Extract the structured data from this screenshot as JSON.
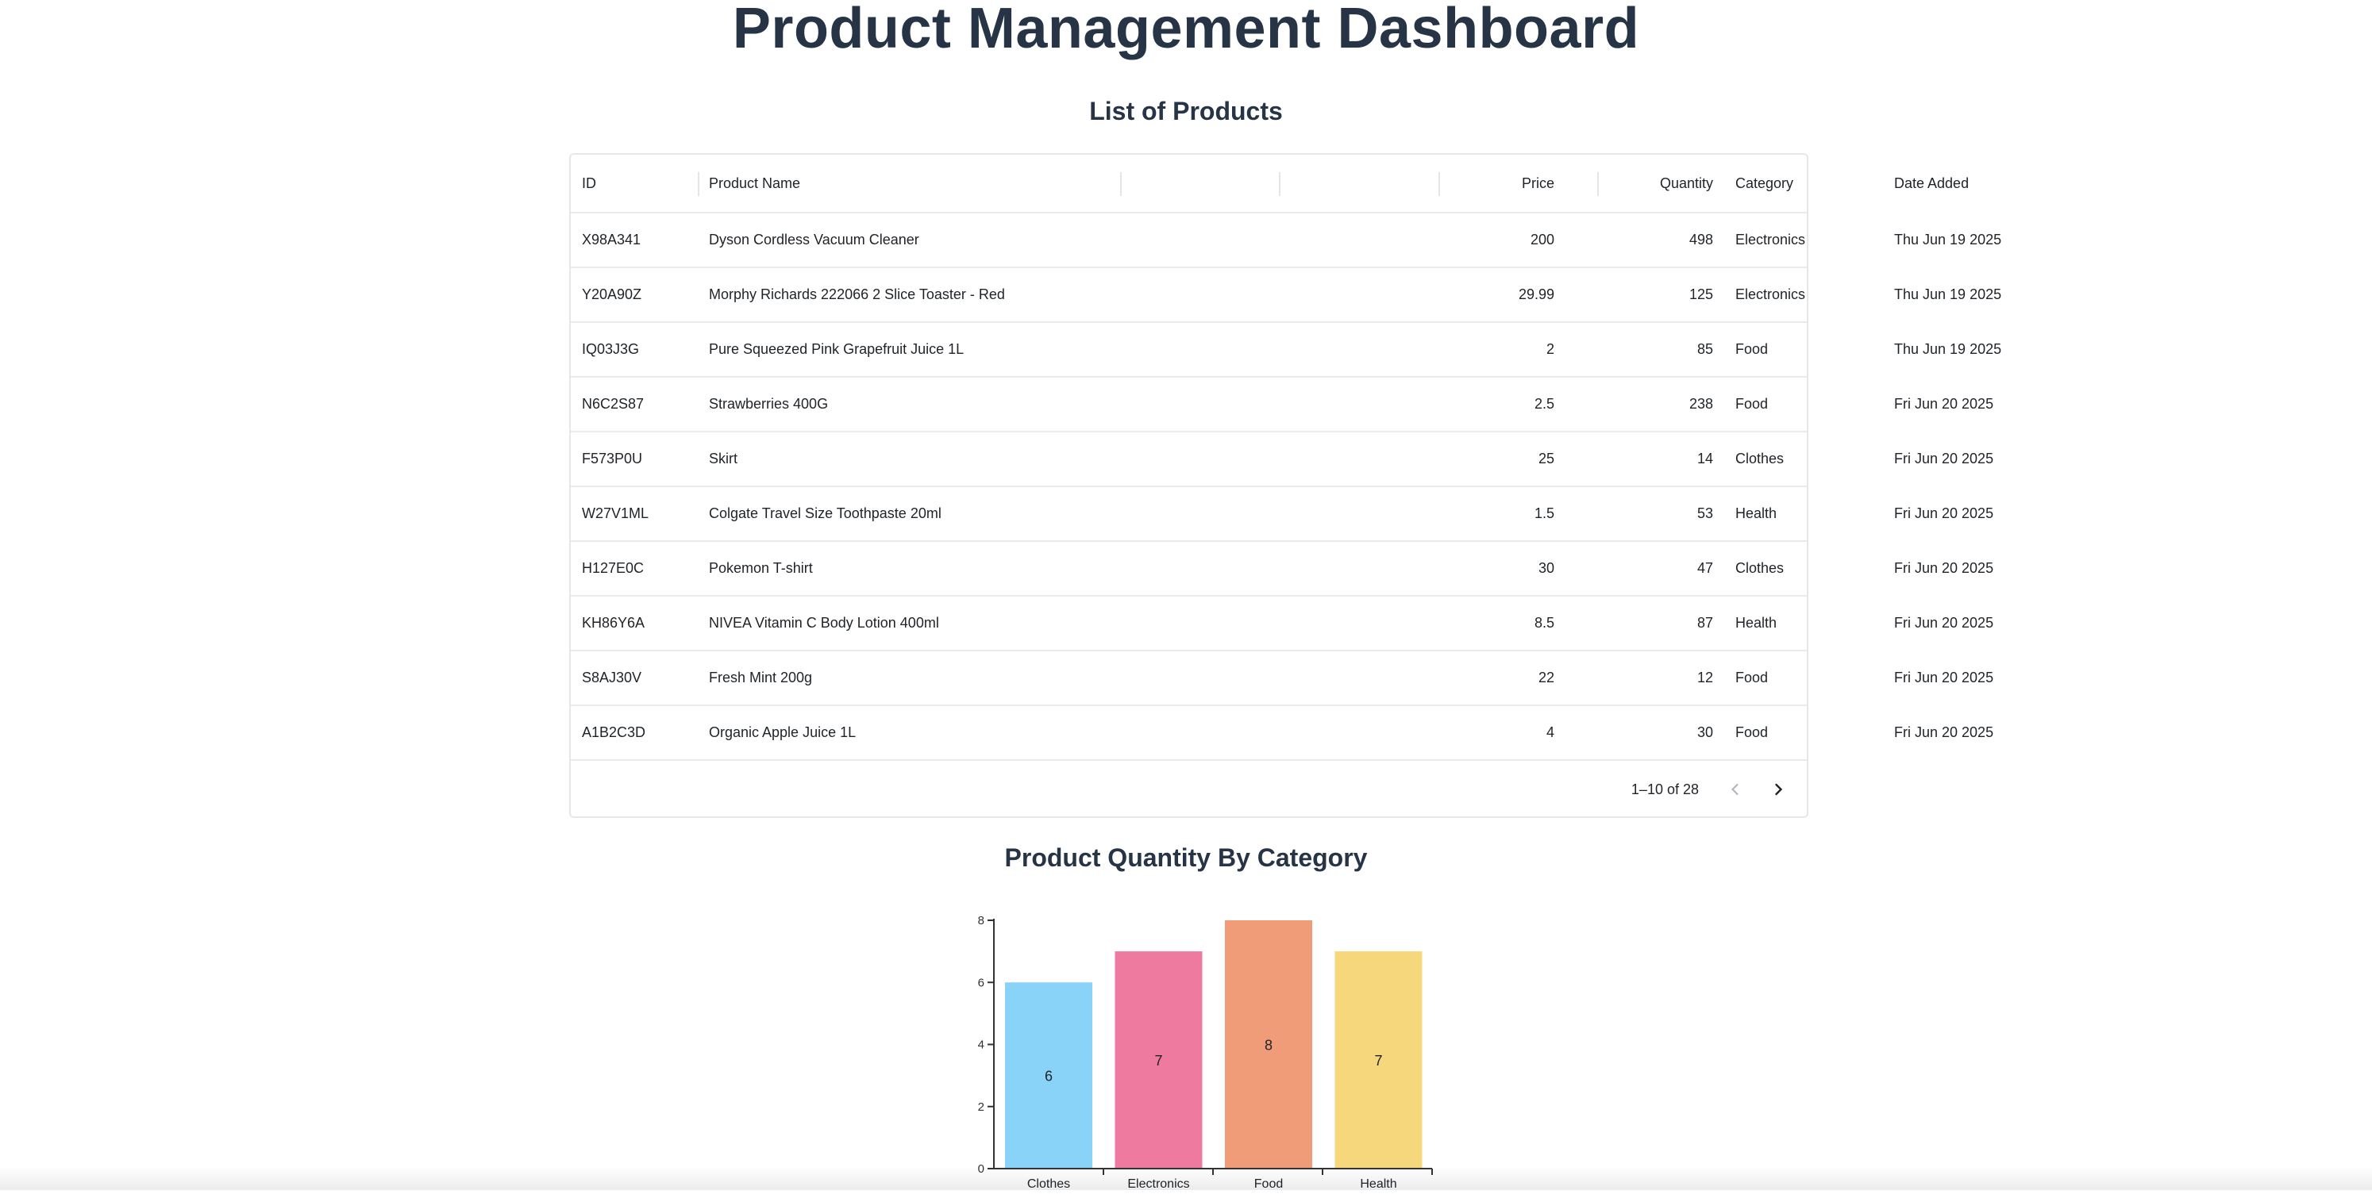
{
  "page": {
    "title": "Product Management Dashboard",
    "products_heading": "List of Products",
    "chart_heading": "Product Quantity By Category"
  },
  "table": {
    "columns": {
      "id": "ID",
      "name": "Product Name",
      "price": "Price",
      "quantity": "Quantity",
      "category": "Category",
      "date": "Date Added"
    },
    "rows": [
      {
        "id": "X98A341",
        "name": "Dyson Cordless Vacuum Cleaner",
        "price": "200",
        "quantity": "498",
        "category": "Electronics",
        "date": "Thu Jun 19 2025"
      },
      {
        "id": "Y20A90Z",
        "name": "Morphy Richards 222066 2 Slice Toaster - Red",
        "price": "29.99",
        "quantity": "125",
        "category": "Electronics",
        "date": "Thu Jun 19 2025"
      },
      {
        "id": "IQ03J3G",
        "name": "Pure Squeezed Pink Grapefruit Juice 1L",
        "price": "2",
        "quantity": "85",
        "category": "Food",
        "date": "Thu Jun 19 2025"
      },
      {
        "id": "N6C2S87",
        "name": "Strawberries 400G",
        "price": "2.5",
        "quantity": "238",
        "category": "Food",
        "date": "Fri Jun 20 2025"
      },
      {
        "id": "F573P0U",
        "name": "Skirt",
        "price": "25",
        "quantity": "14",
        "category": "Clothes",
        "date": "Fri Jun 20 2025"
      },
      {
        "id": "W27V1ML",
        "name": "Colgate Travel Size Toothpaste 20ml",
        "price": "1.5",
        "quantity": "53",
        "category": "Health",
        "date": "Fri Jun 20 2025"
      },
      {
        "id": "H127E0C",
        "name": "Pokemon T-shirt",
        "price": "30",
        "quantity": "47",
        "category": "Clothes",
        "date": "Fri Jun 20 2025"
      },
      {
        "id": "KH86Y6A",
        "name": "NIVEA Vitamin C Body Lotion 400ml",
        "price": "8.5",
        "quantity": "87",
        "category": "Health",
        "date": "Fri Jun 20 2025"
      },
      {
        "id": "S8AJ30V",
        "name": "Fresh Mint 200g",
        "price": "22",
        "quantity": "12",
        "category": "Food",
        "date": "Fri Jun 20 2025"
      },
      {
        "id": "A1B2C3D",
        "name": "Organic Apple Juice 1L",
        "price": "4",
        "quantity": "30",
        "category": "Food",
        "date": "Fri Jun 20 2025"
      }
    ],
    "pagination": {
      "range_text": "1–10 of 28",
      "prev_icon": "chevron-left-icon",
      "next_icon": "chevron-right-icon"
    }
  },
  "chart_data": {
    "type": "bar",
    "categories": [
      "Clothes",
      "Electronics",
      "Food",
      "Health"
    ],
    "values": [
      6,
      7,
      8,
      7
    ],
    "data_labels": [
      "6",
      "7",
      "8",
      "7"
    ],
    "colors": [
      "#8ad3f8",
      "#ef7aa0",
      "#f09c78",
      "#f6d77c"
    ],
    "yticks": [
      "0",
      "2",
      "4",
      "6",
      "8"
    ],
    "ylim": [
      0,
      8
    ],
    "grid": false,
    "legend": "none"
  }
}
